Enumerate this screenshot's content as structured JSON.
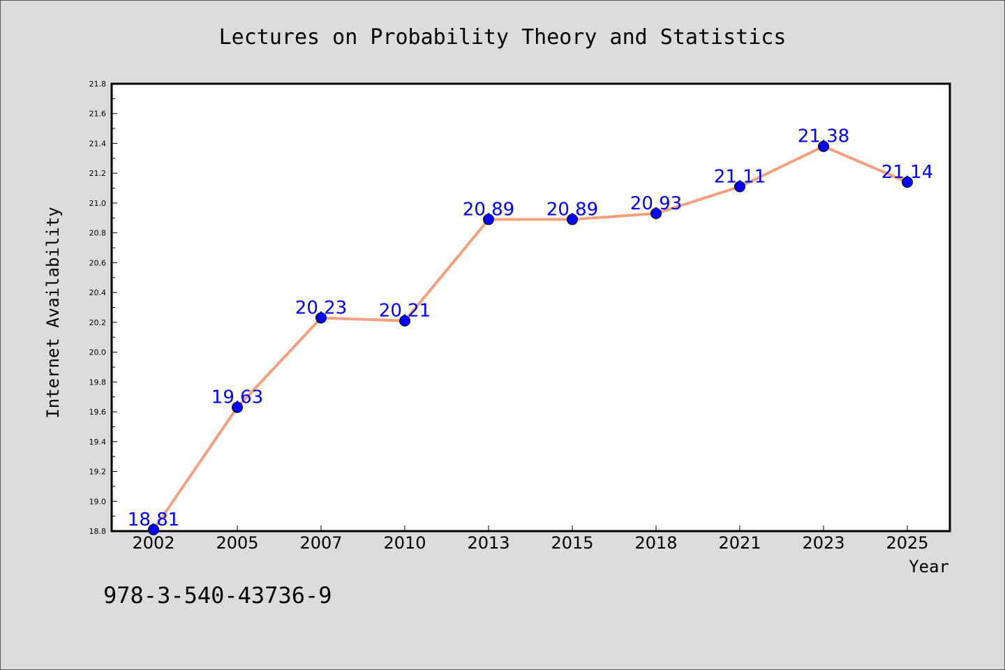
{
  "chart_data": {
    "type": "line",
    "title": "Lectures on Probability Theory and Statistics",
    "xlabel": "Year",
    "ylabel": "Internet Availability",
    "categories": [
      "2002",
      "2005",
      "2007",
      "2010",
      "2013",
      "2015",
      "2018",
      "2021",
      "2023",
      "2025"
    ],
    "series": [
      {
        "values": [
          18.81,
          19.63,
          20.23,
          20.21,
          20.89,
          20.89,
          20.93,
          21.11,
          21.38,
          21.14
        ]
      }
    ],
    "data_labels": [
      "18.81",
      "19.63",
      "20.23",
      "20.21",
      "20.89",
      "20.89",
      "20.93",
      "21.11",
      "21.38",
      "21.14"
    ],
    "ylim": [
      18.8,
      21.8
    ],
    "yticks": [
      "18.8",
      "19.0",
      "19.2",
      "19.4",
      "19.6",
      "19.8",
      "20.0",
      "20.2",
      "20.4",
      "20.6",
      "20.8",
      "21.0",
      "21.2",
      "21.4",
      "21.6",
      "21.8"
    ],
    "grid": false,
    "line_color": "#f4a07e",
    "marker_color": "#0000ff",
    "label_color": "#0000ff"
  },
  "footer": {
    "isbn": "978-3-540-43736-9"
  }
}
